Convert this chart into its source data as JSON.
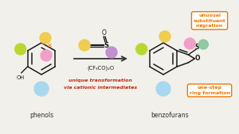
{
  "bg_color": "#f2f0eb",
  "phenol_label": "phenols",
  "benzofuran_label": "benzofurans",
  "reagent_label": "(CF₃CO)₂O",
  "red_text_line1": "unique transformation",
  "red_text_line2": "via cationic intermediates",
  "orange_text1": "unusual\nsubstituent\nmigration",
  "orange_text2": "one-step\nring formation",
  "red_color": "#c8230a",
  "orange_color": "#f07800",
  "circle_yellow": "#f0cc50",
  "circle_pink": "#f0a0c8",
  "circle_green": "#b8d830",
  "circle_purple": "#c090d0",
  "circle_blue": "#a8d8f0",
  "circle_teal": "#90c8a0",
  "arrow_color": "#333333",
  "bond_color": "#1a1a1a",
  "lightning_color": "#f07800"
}
